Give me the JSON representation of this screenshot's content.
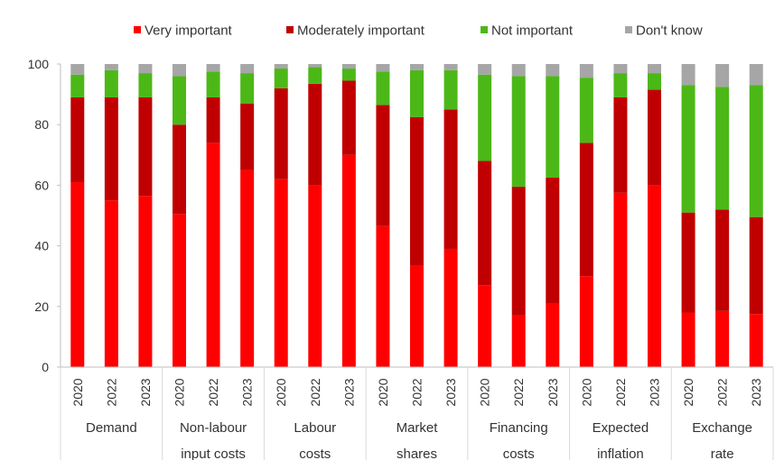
{
  "chart_data": {
    "type": "bar",
    "stacked": true,
    "groups": [
      "Demand",
      "Non-labour input costs",
      "Labour costs",
      "Market shares",
      "Financing costs",
      "Expected inflation",
      "Exchange rate"
    ],
    "group_label_lines": [
      [
        "Demand"
      ],
      [
        "Non-labour",
        "input costs"
      ],
      [
        "Labour",
        "costs"
      ],
      [
        "Market",
        "shares"
      ],
      [
        "Financing",
        "costs"
      ],
      [
        "Expected",
        "inflation"
      ],
      [
        "Exchange",
        "rate"
      ]
    ],
    "years": [
      "2020",
      "2022",
      "2023"
    ],
    "ylim": [
      0,
      100
    ],
    "yticks": [
      0,
      20,
      40,
      60,
      80,
      100
    ],
    "grid": false,
    "legend_position": "top",
    "series": [
      {
        "name": "Very important",
        "color": "#ff0000",
        "values": [
          61,
          55,
          56.5,
          50.5,
          74,
          65,
          62,
          60,
          70,
          46.5,
          33.5,
          39,
          27,
          17,
          21,
          30,
          57.5,
          60,
          18,
          18.5,
          17.5
        ]
      },
      {
        "name": "Moderately important",
        "color": "#c00000",
        "values": [
          28,
          34,
          32.5,
          29.5,
          15,
          22,
          30,
          33.5,
          24.5,
          40,
          49,
          46,
          41,
          42.5,
          41.5,
          44,
          31.5,
          31.5,
          33,
          33.5,
          32
        ]
      },
      {
        "name": "Not important",
        "color": "#4cb817",
        "values": [
          7.5,
          9,
          8,
          16,
          8.5,
          10,
          6.5,
          5.5,
          4,
          11,
          15.5,
          13,
          28.5,
          36.5,
          33.5,
          21.5,
          8,
          5.5,
          42,
          40.5,
          43.5
        ]
      },
      {
        "name": "Don't know",
        "color": "#a6a6a6",
        "values": [
          3.5,
          2,
          3,
          4,
          2.5,
          3,
          1.5,
          1,
          1.5,
          2.5,
          2,
          2,
          3.5,
          4,
          4,
          4.5,
          3,
          3,
          7,
          7.5,
          7
        ]
      }
    ]
  }
}
